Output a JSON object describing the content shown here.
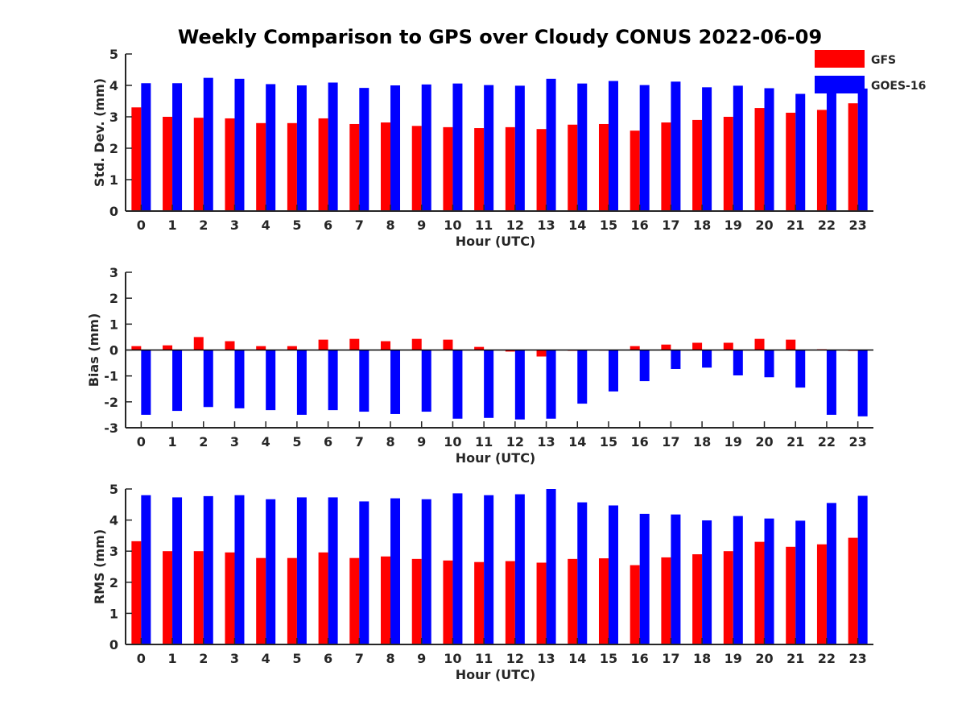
{
  "title": "Weekly Comparison to GPS over Cloudy CONUS 2022-06-09",
  "legend": [
    {
      "name": "GFS",
      "color": "#ff0000"
    },
    {
      "name": "GOES-16",
      "color": "#0000ff"
    }
  ],
  "chart_data": [
    {
      "type": "bar",
      "ylabel": "Std. Dev. (mm)",
      "xlabel": "Hour (UTC)",
      "ylim": [
        0,
        5
      ],
      "yticks": [
        0,
        1,
        2,
        3,
        4,
        5
      ],
      "categories": [
        "0",
        "1",
        "2",
        "3",
        "4",
        "5",
        "6",
        "7",
        "8",
        "9",
        "10",
        "11",
        "12",
        "13",
        "14",
        "15",
        "16",
        "17",
        "18",
        "19",
        "20",
        "21",
        "22",
        "23"
      ],
      "series": [
        {
          "name": "GFS",
          "color": "#ff0000",
          "values": [
            3.3,
            3.0,
            2.97,
            2.95,
            2.8,
            2.8,
            2.95,
            2.77,
            2.82,
            2.71,
            2.67,
            2.64,
            2.67,
            2.61,
            2.75,
            2.77,
            2.56,
            2.82,
            2.9,
            3.0,
            3.28,
            3.13,
            3.22,
            3.43
          ]
        },
        {
          "name": "GOES-16",
          "color": "#0000ff",
          "values": [
            4.07,
            4.07,
            4.24,
            4.21,
            4.04,
            4.0,
            4.09,
            3.92,
            4.0,
            4.03,
            4.06,
            4.01,
            3.99,
            4.21,
            4.06,
            4.14,
            4.01,
            4.12,
            3.94,
            3.99,
            3.91,
            3.73,
            3.78,
            3.9
          ]
        }
      ]
    },
    {
      "type": "bar",
      "ylabel": "Bias (mm)",
      "xlabel": "Hour (UTC)",
      "ylim": [
        -3,
        3
      ],
      "yticks": [
        -3,
        -2,
        -1,
        0,
        1,
        2,
        3
      ],
      "categories": [
        "0",
        "1",
        "2",
        "3",
        "4",
        "5",
        "6",
        "7",
        "8",
        "9",
        "10",
        "11",
        "12",
        "13",
        "14",
        "15",
        "16",
        "17",
        "18",
        "19",
        "20",
        "21",
        "22",
        "23"
      ],
      "series": [
        {
          "name": "GFS",
          "color": "#ff0000",
          "values": [
            0.15,
            0.18,
            0.5,
            0.34,
            0.15,
            0.15,
            0.4,
            0.43,
            0.34,
            0.43,
            0.4,
            0.12,
            -0.06,
            -0.25,
            -0.03,
            0.0,
            0.15,
            0.21,
            0.28,
            0.28,
            0.43,
            0.4,
            0.03,
            -0.03
          ]
        },
        {
          "name": "GOES-16",
          "color": "#0000ff",
          "values": [
            -2.5,
            -2.35,
            -2.2,
            -2.25,
            -2.32,
            -2.5,
            -2.32,
            -2.38,
            -2.47,
            -2.38,
            -2.65,
            -2.62,
            -2.68,
            -2.65,
            -2.07,
            -1.6,
            -1.2,
            -0.73,
            -0.68,
            -0.98,
            -1.05,
            -1.45,
            -2.5,
            -2.56
          ]
        }
      ]
    },
    {
      "type": "bar",
      "ylabel": "RMS (mm)",
      "xlabel": "Hour (UTC)",
      "ylim": [
        0,
        5
      ],
      "yticks": [
        0,
        1,
        2,
        3,
        4,
        5
      ],
      "categories": [
        "0",
        "1",
        "2",
        "3",
        "4",
        "5",
        "6",
        "7",
        "8",
        "9",
        "10",
        "11",
        "12",
        "13",
        "14",
        "15",
        "16",
        "17",
        "18",
        "19",
        "20",
        "21",
        "22",
        "23"
      ],
      "series": [
        {
          "name": "GFS",
          "color": "#ff0000",
          "values": [
            3.32,
            3.0,
            3.0,
            2.96,
            2.78,
            2.78,
            2.96,
            2.78,
            2.83,
            2.75,
            2.7,
            2.65,
            2.68,
            2.63,
            2.75,
            2.77,
            2.55,
            2.8,
            2.9,
            3.0,
            3.3,
            3.14,
            3.22,
            3.43
          ]
        },
        {
          "name": "GOES-16",
          "color": "#0000ff",
          "values": [
            4.8,
            4.73,
            4.77,
            4.8,
            4.67,
            4.73,
            4.73,
            4.6,
            4.7,
            4.67,
            4.86,
            4.8,
            4.83,
            5.0,
            4.57,
            4.47,
            4.2,
            4.18,
            3.99,
            4.13,
            4.05,
            3.98,
            4.55,
            4.78
          ]
        }
      ]
    }
  ]
}
